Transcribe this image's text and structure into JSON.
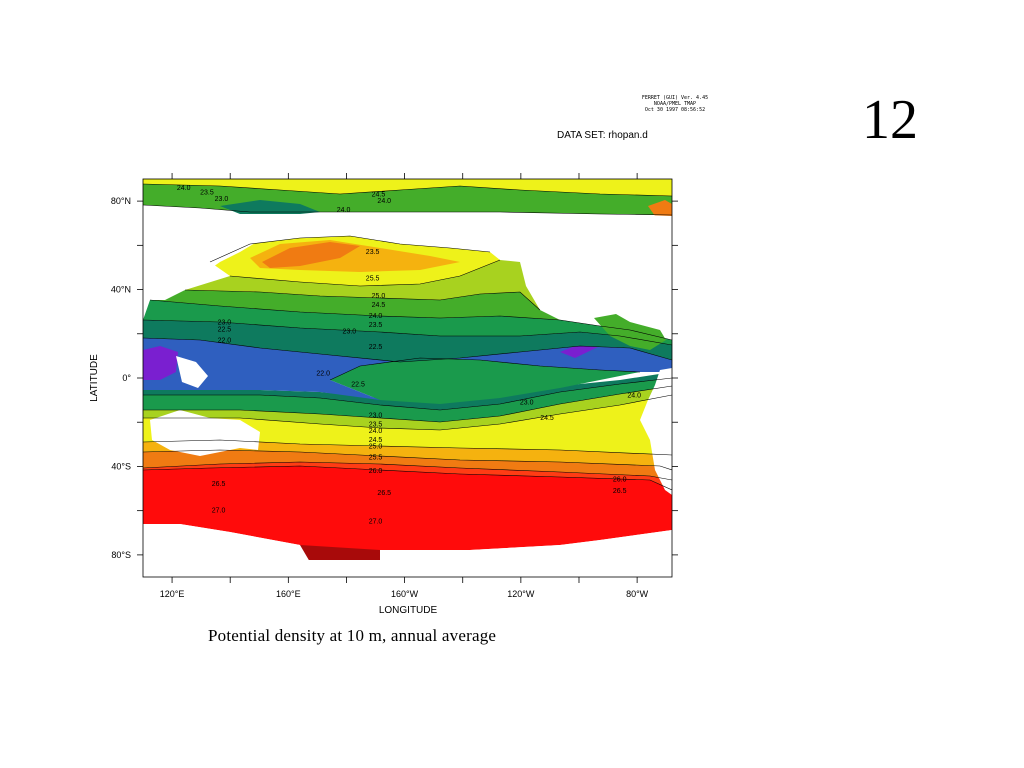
{
  "slide": {
    "number": "12"
  },
  "ferret": {
    "line1": "FERRET (GUI) Ver. 4.45",
    "line2": "NOAA/PMEL TMAP",
    "line3": "Oct 30 1997 08:56:52"
  },
  "dataset_label": "DATA SET: rhopan.d",
  "caption": "Potential density at 10 m, annual average",
  "chart_data": {
    "type": "heatmap",
    "title": "",
    "xlabel": "LONGITUDE",
    "ylabel": "LATITUDE",
    "xlim": [
      110,
      292
    ],
    "ylim": [
      -90,
      90
    ],
    "x_ticks": [
      {
        "value": 120,
        "label": "120°E"
      },
      {
        "value": 160,
        "label": "160°E"
      },
      {
        "value": 200,
        "label": "160°W"
      },
      {
        "value": 240,
        "label": "120°W"
      },
      {
        "value": 280,
        "label": "80°W"
      }
    ],
    "y_ticks": [
      {
        "value": 80,
        "label": "80°N"
      },
      {
        "value": 40,
        "label": "40°N"
      },
      {
        "value": 0,
        "label": "0°"
      },
      {
        "value": -40,
        "label": "40°S"
      },
      {
        "value": -80,
        "label": "80°S"
      }
    ],
    "contour_labels": [
      {
        "text": "24.0",
        "x": 124,
        "y": 86
      },
      {
        "text": "23.5",
        "x": 132,
        "y": 84
      },
      {
        "text": "23.0",
        "x": 137,
        "y": 81
      },
      {
        "text": "24.5",
        "x": 191,
        "y": 83
      },
      {
        "text": "24.0",
        "x": 193,
        "y": 80
      },
      {
        "text": "24.0",
        "x": 179,
        "y": 76
      },
      {
        "text": "23.5",
        "x": 189,
        "y": 57
      },
      {
        "text": "25.5",
        "x": 189,
        "y": 45
      },
      {
        "text": "25.0",
        "x": 191,
        "y": 37
      },
      {
        "text": "24.5",
        "x": 191,
        "y": 33
      },
      {
        "text": "24.0",
        "x": 190,
        "y": 28
      },
      {
        "text": "23.5",
        "x": 190,
        "y": 24
      },
      {
        "text": "23.0",
        "x": 138,
        "y": 25
      },
      {
        "text": "22.5",
        "x": 138,
        "y": 22
      },
      {
        "text": "22.0",
        "x": 138,
        "y": 17
      },
      {
        "text": "23.0",
        "x": 181,
        "y": 21
      },
      {
        "text": "22.5",
        "x": 190,
        "y": 14
      },
      {
        "text": "22.0",
        "x": 172,
        "y": 2
      },
      {
        "text": "22.5",
        "x": 184,
        "y": -3
      },
      {
        "text": "23.0",
        "x": 242,
        "y": -11
      },
      {
        "text": "24.0",
        "x": 279,
        "y": -8
      },
      {
        "text": "24.5",
        "x": 249,
        "y": -18
      },
      {
        "text": "23.0",
        "x": 190,
        "y": -17
      },
      {
        "text": "23.5",
        "x": 190,
        "y": -21
      },
      {
        "text": "24.0",
        "x": 190,
        "y": -24
      },
      {
        "text": "24.5",
        "x": 190,
        "y": -28
      },
      {
        "text": "25.0",
        "x": 190,
        "y": -31
      },
      {
        "text": "25.5",
        "x": 190,
        "y": -36
      },
      {
        "text": "26.0",
        "x": 190,
        "y": -42
      },
      {
        "text": "26.5",
        "x": 136,
        "y": -48
      },
      {
        "text": "26.0",
        "x": 274,
        "y": -46
      },
      {
        "text": "26.5",
        "x": 274,
        "y": -51
      },
      {
        "text": "26.5",
        "x": 193,
        "y": -52
      },
      {
        "text": "27.0",
        "x": 136,
        "y": -60
      },
      {
        "text": "27.0",
        "x": 190,
        "y": -65
      }
    ]
  },
  "colors": {
    "purple": "#7a1fd0",
    "blue": "#2f5fbf",
    "dark_green": "#0e7a5e",
    "green": "#1a9a4c",
    "mid_green": "#44ad2a",
    "yellow_green": "#a8d21f",
    "yellow": "#eef21a",
    "orange_yellow": "#f5b20f",
    "orange": "#f07b12",
    "red_orange": "#ff3c14",
    "red": "#ff0b0b",
    "dark_red": "#a80a0a",
    "land": "#ffffff"
  }
}
